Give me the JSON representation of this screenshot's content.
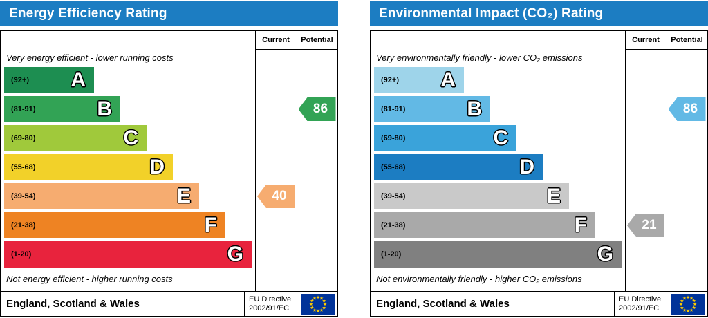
{
  "colors": {
    "header_bg": "#1c7dc2",
    "flag_bg": "#003399",
    "flag_stars": "#ffcc00"
  },
  "chart_data": [
    {
      "type": "bar",
      "title": "Energy Efficiency Rating",
      "columns": [
        "Current",
        "Potential"
      ],
      "top_caption": "Very energy efficient - lower running costs",
      "bottom_caption": "Not energy efficient - higher running costs",
      "bands": [
        {
          "letter": "A",
          "range": "(92+)",
          "color": "#1d8e51"
        },
        {
          "letter": "B",
          "range": "(81-91)",
          "color": "#32a355"
        },
        {
          "letter": "C",
          "range": "(69-80)",
          "color": "#a0c93b"
        },
        {
          "letter": "D",
          "range": "(55-68)",
          "color": "#f2d129"
        },
        {
          "letter": "E",
          "range": "(39-54)",
          "color": "#f6ac70"
        },
        {
          "letter": "F",
          "range": "(21-38)",
          "color": "#ee8323"
        },
        {
          "letter": "G",
          "range": "(1-20)",
          "color": "#e8233d"
        }
      ],
      "ratings": [
        {
          "column": "Current",
          "value": 40,
          "band": "E"
        },
        {
          "column": "Potential",
          "value": 86,
          "band": "B"
        }
      ],
      "footer": {
        "region": "England, Scotland & Wales",
        "directive_line1": "EU Directive",
        "directive_line2": "2002/91/EC"
      }
    },
    {
      "type": "bar",
      "title": "Environmental Impact (CO₂) Rating",
      "columns": [
        "Current",
        "Potential"
      ],
      "top_caption": "Very environmentally friendly - lower CO₂ emissions",
      "bottom_caption": "Not environmentally friendly - higher CO₂ emissions",
      "bands": [
        {
          "letter": "A",
          "range": "(92+)",
          "color": "#9ed4ea"
        },
        {
          "letter": "B",
          "range": "(81-91)",
          "color": "#62b9e5"
        },
        {
          "letter": "C",
          "range": "(69-80)",
          "color": "#3aa3da"
        },
        {
          "letter": "D",
          "range": "(55-68)",
          "color": "#1c7dc2"
        },
        {
          "letter": "E",
          "range": "(39-54)",
          "color": "#c9c9c9"
        },
        {
          "letter": "F",
          "range": "(21-38)",
          "color": "#a9a9a9"
        },
        {
          "letter": "G",
          "range": "(1-20)",
          "color": "#808080"
        }
      ],
      "ratings": [
        {
          "column": "Current",
          "value": 21,
          "band": "F"
        },
        {
          "column": "Potential",
          "value": 86,
          "band": "B"
        }
      ],
      "footer": {
        "region": "England, Scotland & Wales",
        "directive_line1": "EU Directive",
        "directive_line2": "2002/91/EC"
      }
    }
  ]
}
